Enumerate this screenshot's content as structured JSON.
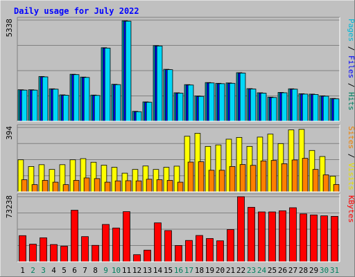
{
  "chart_data": {
    "type": "bar",
    "title": "Daily usage for July 2022",
    "categories": [
      "1",
      "2",
      "3",
      "4",
      "5",
      "6",
      "7",
      "8",
      "9",
      "10",
      "11",
      "12",
      "13",
      "14",
      "15",
      "16",
      "17",
      "18",
      "19",
      "20",
      "21",
      "22",
      "23",
      "24",
      "25",
      "26",
      "27",
      "28",
      "29",
      "30",
      "31"
    ],
    "weekend_days": [
      "2",
      "3",
      "9",
      "10",
      "16",
      "17",
      "23",
      "24",
      "30",
      "31"
    ],
    "panels": [
      {
        "name": "traffic",
        "axis_max_label": "5338",
        "ylim": [
          0,
          5338
        ],
        "grid": true,
        "right_label": [
          {
            "text": "Pages",
            "color": "#00b8d8"
          },
          {
            "text": " / ",
            "color": "#000000"
          },
          {
            "text": "Files",
            "color": "#0000ff"
          },
          {
            "text": " / ",
            "color": "#000000"
          },
          {
            "text": "Hits",
            "color": "#008060"
          }
        ],
        "series": [
          {
            "name": "Hits",
            "color": "#00a0b0",
            "values": [
              1660,
              1660,
              2360,
              1710,
              1390,
              2480,
              2330,
              1380,
              3880,
              1950,
              5300,
              520,
              1020,
              3990,
              2740,
              1500,
              1930,
              1330,
              2040,
              2000,
              2020,
              2560,
              1720,
              1500,
              1270,
              1520,
              1710,
              1450,
              1430,
              1340,
              1200
            ]
          },
          {
            "name": "Files",
            "color": "#0000ff",
            "values": [
              1640,
              1640,
              2340,
              1690,
              1370,
              2460,
              2310,
              1360,
              3860,
              1930,
              5280,
              500,
              1000,
              3970,
              2720,
              1480,
              1910,
              1310,
              2020,
              1980,
              2000,
              2540,
              1700,
              1480,
              1250,
              1500,
              1690,
              1430,
              1410,
              1320,
              1180
            ]
          },
          {
            "name": "Pages",
            "color": "#00d8f8",
            "values": [
              1640,
              1640,
              2340,
              1690,
              1370,
              2460,
              2310,
              1360,
              3860,
              1930,
              5280,
              500,
              1000,
              3970,
              2720,
              1480,
              1910,
              1310,
              2020,
              1980,
              2000,
              2540,
              1700,
              1480,
              1250,
              1500,
              1690,
              1430,
              1410,
              1320,
              1180
            ]
          }
        ]
      },
      {
        "name": "visitors",
        "axis_max_label": "394",
        "ylim": [
          0,
          394
        ],
        "grid": true,
        "right_label": [
          {
            "text": "Sites",
            "color": "#f08000"
          },
          {
            "text": " / ",
            "color": "#000000"
          },
          {
            "text": "Visits",
            "color": "#e8e000"
          }
        ],
        "series": [
          {
            "name": "Visits",
            "color": "#ffff00",
            "values": [
              196,
              155,
              166,
              137,
              166,
              196,
              203,
              181,
              163,
              150,
              114,
              137,
              158,
              137,
              150,
              157,
              340,
              358,
              278,
              287,
              322,
              333,
              278,
              335,
              353,
              295,
              379,
              382,
              253,
              216,
              96
            ]
          },
          {
            "name": "Sites",
            "color": "#ff8000",
            "values": [
              74,
              44,
              70,
              59,
              44,
              70,
              85,
              81,
              59,
              67,
              68,
              67,
              77,
              74,
              70,
              59,
              182,
              184,
              132,
              132,
              155,
              167,
              162,
              189,
              192,
              172,
              195,
              205,
              137,
              104,
              45
            ]
          }
        ]
      },
      {
        "name": "kbytes",
        "axis_max_label": "73238",
        "ylim": [
          0,
          73238
        ],
        "grid": true,
        "right_label": [
          {
            "text": "KBytes",
            "color": "#ff0000"
          }
        ],
        "series": [
          {
            "name": "KBytes",
            "color": "#ff0000",
            "values": [
              29400,
              19800,
              27000,
              19400,
              17500,
              58000,
              28300,
              18500,
              42000,
              38000,
              56400,
              8000,
              13100,
              43800,
              35100,
              18300,
              24000,
              29600,
              26200,
              23600,
              36300,
              73200,
              61300,
              56100,
              56100,
              57400,
              60800,
              53900,
              52700,
              51700,
              51100
            ]
          }
        ]
      }
    ]
  }
}
